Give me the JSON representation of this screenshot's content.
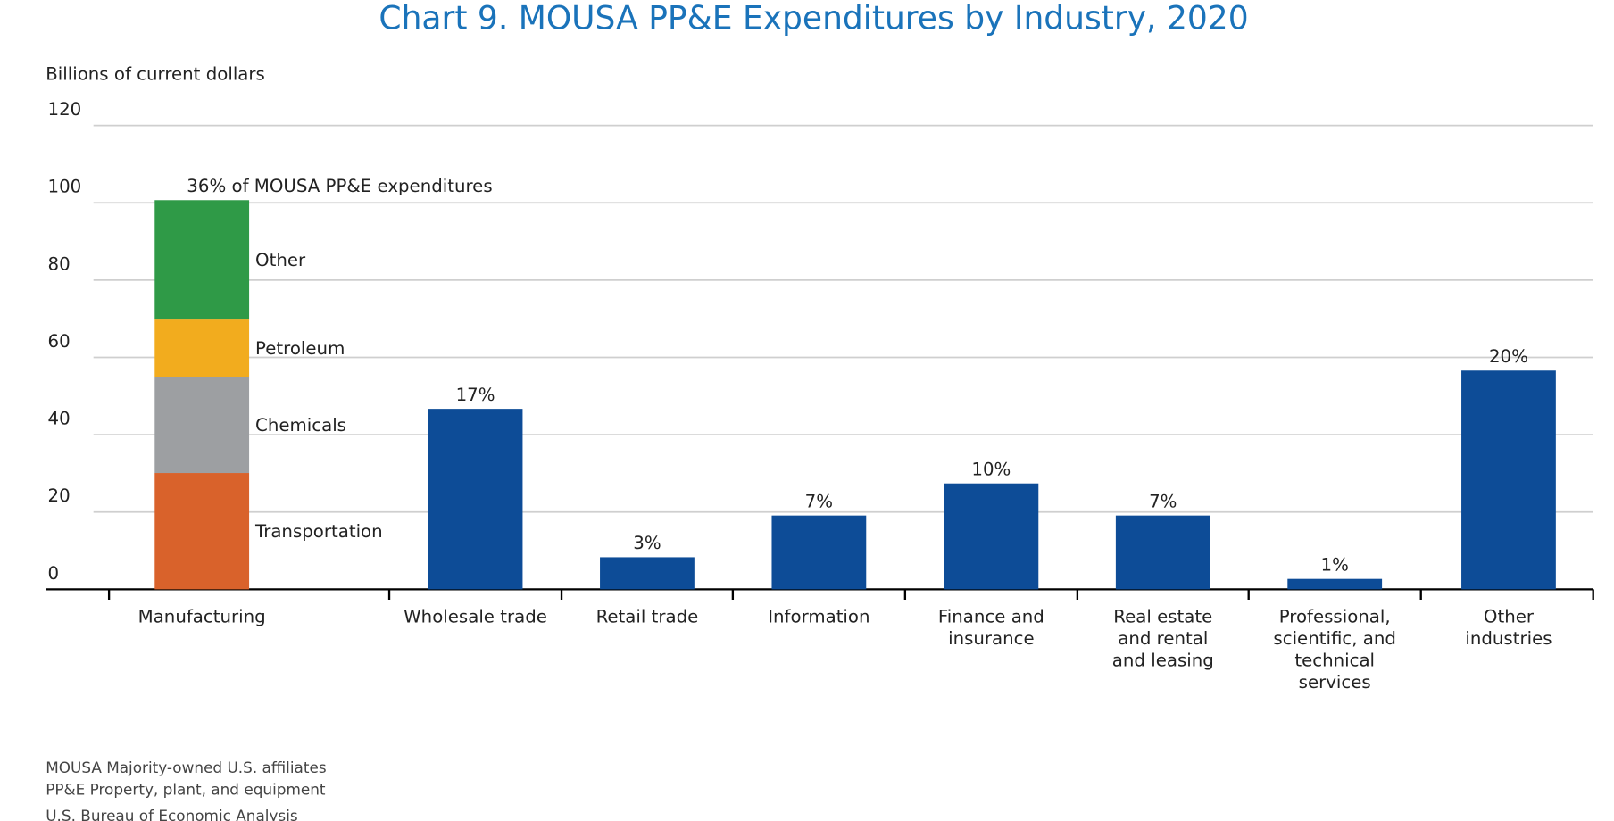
{
  "chart_data": {
    "type": "bar",
    "title": "Chart 9. MOUSA PP&E Expenditures by Industry, 2020",
    "y_axis_label": "Billions of current dollars",
    "categories": [
      "Manufacturing",
      "Wholesale trade",
      "Retail trade",
      "Information",
      "Finance and\ninsurance",
      "Real estate\nand rental\nand leasing",
      "Professional,\nscientific, and\ntechnical\nservices",
      "Other\nindustries"
    ],
    "stacked": true,
    "series": [
      {
        "name": "Transportation",
        "color": "#d9622b",
        "values": [
          30.1,
          null,
          null,
          null,
          null,
          null,
          null,
          null
        ]
      },
      {
        "name": "Chemicals",
        "color": "#9d9fa2",
        "values": [
          24.9,
          null,
          null,
          null,
          null,
          null,
          null,
          null
        ]
      },
      {
        "name": "Petroleum",
        "color": "#f2ac1e",
        "values": [
          14.8,
          null,
          null,
          null,
          null,
          null,
          null,
          null
        ]
      },
      {
        "name": "Other",
        "color": "#2f9a47",
        "values": [
          30.9,
          null,
          null,
          null,
          null,
          null,
          null,
          null
        ]
      },
      {
        "color": "#0d4c97",
        "values": [
          null,
          46.7,
          8.3,
          19.1,
          27.4,
          19.1,
          2.7,
          56.6
        ]
      }
    ],
    "share_labels": [
      "36% of MOUSA PP&E expenditures",
      "17%",
      "3%",
      "7%",
      "10%",
      "7%",
      "1%",
      "20%"
    ],
    "ylim": [
      0,
      120
    ],
    "yticks": [
      0,
      20,
      40,
      60,
      80,
      100,
      120
    ],
    "grid": true,
    "notes": [
      "MOUSA  Majority-owned U.S. affiliates",
      "PP&E  Property, plant, and equipment"
    ],
    "source": "U.S. Bureau of Economic Analysis"
  }
}
